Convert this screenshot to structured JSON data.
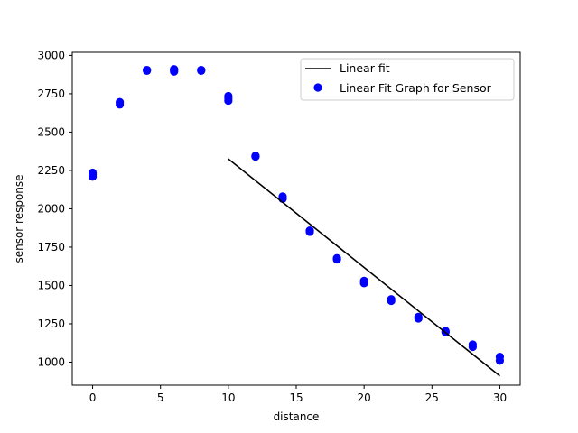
{
  "chart_data": {
    "type": "scatter",
    "xlabel": "distance",
    "ylabel": "sensor response",
    "xlim": [
      -1.5,
      31.5
    ],
    "ylim": [
      850,
      3020
    ],
    "x_ticks": [
      0,
      5,
      10,
      15,
      20,
      25,
      30
    ],
    "y_ticks": [
      1000,
      1250,
      1500,
      1750,
      2000,
      2250,
      2500,
      2750,
      3000
    ],
    "grid": false,
    "legend_position": "top-right",
    "series": [
      {
        "name": "Linear Fit Graph for Sensor",
        "kind": "scatter",
        "color": "#0000ff",
        "points": [
          [
            0,
            2210
          ],
          [
            0,
            2225
          ],
          [
            0,
            2235
          ],
          [
            2,
            2680
          ],
          [
            2,
            2695
          ],
          [
            4,
            2900
          ],
          [
            4,
            2905
          ],
          [
            6,
            2895
          ],
          [
            6,
            2905
          ],
          [
            6,
            2910
          ],
          [
            8,
            2900
          ],
          [
            8,
            2905
          ],
          [
            10,
            2705
          ],
          [
            10,
            2720
          ],
          [
            10,
            2735
          ],
          [
            12,
            2340
          ],
          [
            12,
            2345
          ],
          [
            14,
            2065
          ],
          [
            14,
            2080
          ],
          [
            16,
            1850
          ],
          [
            16,
            1858
          ],
          [
            18,
            1670
          ],
          [
            18,
            1678
          ],
          [
            20,
            1515
          ],
          [
            20,
            1530
          ],
          [
            22,
            1400
          ],
          [
            22,
            1410
          ],
          [
            24,
            1285
          ],
          [
            24,
            1295
          ],
          [
            26,
            1195
          ],
          [
            26,
            1203
          ],
          [
            28,
            1100
          ],
          [
            28,
            1115
          ],
          [
            30,
            1010
          ],
          [
            30,
            1035
          ]
        ]
      },
      {
        "name": "Linear fit",
        "kind": "line",
        "color": "#000000",
        "x": [
          10,
          30
        ],
        "y": [
          2325,
          910
        ]
      }
    ]
  }
}
